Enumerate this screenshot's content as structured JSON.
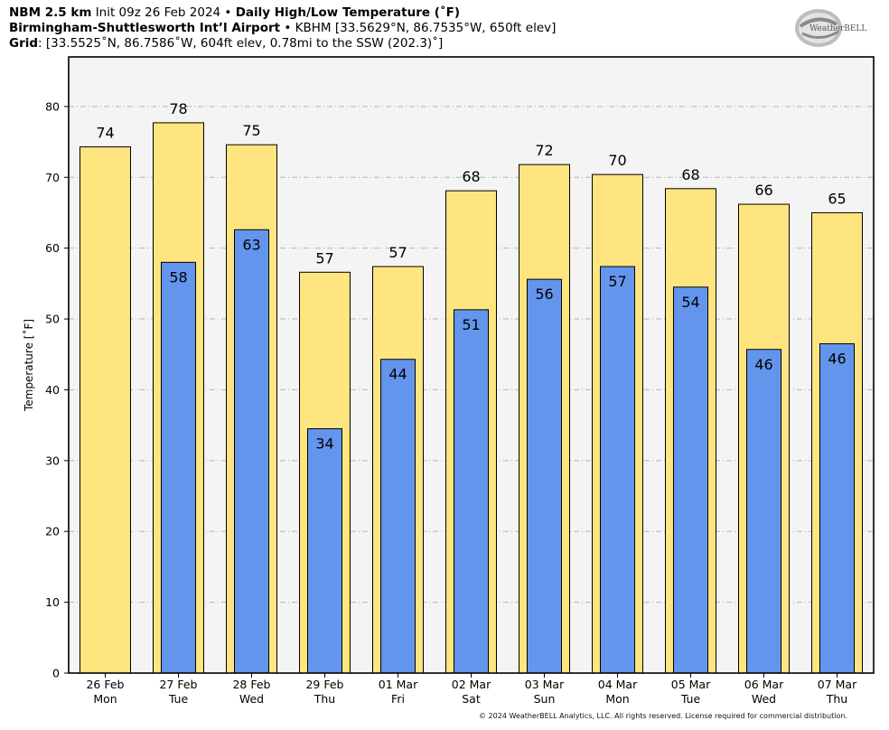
{
  "header": {
    "model": "NBM 2.5 km",
    "init": "Init 09z 26 Feb 2024",
    "sep": " • ",
    "product": "Daily High/Low Temperature (˚F)",
    "station_name": "Birmingham-Shuttlesworth Int’l Airport",
    "station_info": "KBHM [33.5629°N, 86.7535°W, 650ft elev]",
    "grid_label": "Grid",
    "grid_info": ": [33.5525˚N, 86.7586˚W, 604ft elev, 0.78mi to the SSW (202.3)˚]"
  },
  "logo": {
    "text": "WeatherBELL"
  },
  "footer": "© 2024 WeatherBELL Analytics, LLC. All rights reserved. License required for commercial distribution.",
  "chart_data": {
    "type": "bar",
    "title": "Daily High/Low Temperature (˚F)",
    "ylabel": "Temperature [˚F]",
    "xlabel": "",
    "ylim": [
      0,
      87
    ],
    "yticks": [
      0,
      10,
      20,
      30,
      40,
      50,
      60,
      70,
      80
    ],
    "grid": true,
    "categories": [
      "26 Feb",
      "27 Feb",
      "28 Feb",
      "29 Feb",
      "01 Mar",
      "02 Mar",
      "03 Mar",
      "04 Mar",
      "05 Mar",
      "06 Mar",
      "07 Mar"
    ],
    "weekdays": [
      "Mon",
      "Tue",
      "Wed",
      "Thu",
      "Fri",
      "Sat",
      "Sun",
      "Mon",
      "Tue",
      "Wed",
      "Thu"
    ],
    "series": [
      {
        "values": [
          74.3,
          77.7,
          74.6,
          56.6,
          57.4,
          68.1,
          71.8,
          70.4,
          68.4,
          66.2,
          65.0
        ],
        "labels": [
          "74",
          "78",
          "75",
          "57",
          "57",
          "68",
          "72",
          "70",
          "68",
          "66",
          "65"
        ],
        "color": "#FFE57F"
      },
      {
        "values": [
          null,
          58.0,
          62.6,
          34.5,
          44.3,
          51.3,
          55.6,
          57.4,
          54.5,
          45.7,
          46.5
        ],
        "labels": [
          "",
          "58",
          "63",
          "34",
          "44",
          "51",
          "56",
          "57",
          "54",
          "46",
          "46"
        ],
        "color": "#6495ED"
      }
    ]
  }
}
